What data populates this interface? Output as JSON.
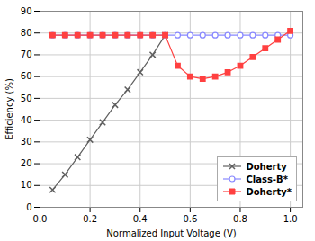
{
  "chart_data": {
    "type": "line",
    "xlabel": "Normalized Input Voltage (V)",
    "ylabel": "Efficiency (%)",
    "xlim": [
      0.0,
      1.05
    ],
    "ylim": [
      0,
      90
    ],
    "xticks": [
      {
        "value": 0.0,
        "label": "0.0"
      },
      0.2,
      0.4,
      0.6,
      0.8,
      {
        "value": 1.0,
        "label": "1.0"
      }
    ],
    "yticks": [
      0,
      10,
      20,
      30,
      40,
      50,
      60,
      70,
      80,
      90
    ],
    "grid": true,
    "legend": "lower right",
    "series": [
      {
        "name": "Doherty",
        "color": "#606060",
        "marker": "x",
        "x": [
          0.05,
          0.1,
          0.15,
          0.2,
          0.25,
          0.3,
          0.35,
          0.4,
          0.45,
          0.5
        ],
        "values": [
          8,
          15,
          23,
          31,
          39,
          47,
          54,
          62,
          70,
          79
        ]
      },
      {
        "name": "Class-B*",
        "color": "#8888ff",
        "marker": "circle",
        "x": [
          0.05,
          0.1,
          0.15,
          0.2,
          0.25,
          0.3,
          0.35,
          0.4,
          0.45,
          0.5,
          0.55,
          0.6,
          0.65,
          0.7,
          0.75,
          0.8,
          0.85,
          0.9,
          0.95,
          1.0
        ],
        "values": [
          79,
          79,
          79,
          79,
          79,
          79,
          79,
          79,
          79,
          79,
          79,
          79,
          79,
          79,
          79,
          79,
          79,
          79,
          79,
          79
        ]
      },
      {
        "name": "Doherty*",
        "color": "#ff4040",
        "marker": "square",
        "x": [
          0.05,
          0.1,
          0.15,
          0.2,
          0.25,
          0.3,
          0.35,
          0.4,
          0.45,
          0.5,
          0.55,
          0.6,
          0.65,
          0.7,
          0.75,
          0.8,
          0.85,
          0.9,
          0.95,
          1.0
        ],
        "values": [
          79,
          79,
          79,
          79,
          79,
          79,
          79,
          79,
          79,
          79,
          65,
          60,
          59,
          60,
          62,
          65,
          69,
          73,
          77,
          81
        ]
      }
    ]
  }
}
